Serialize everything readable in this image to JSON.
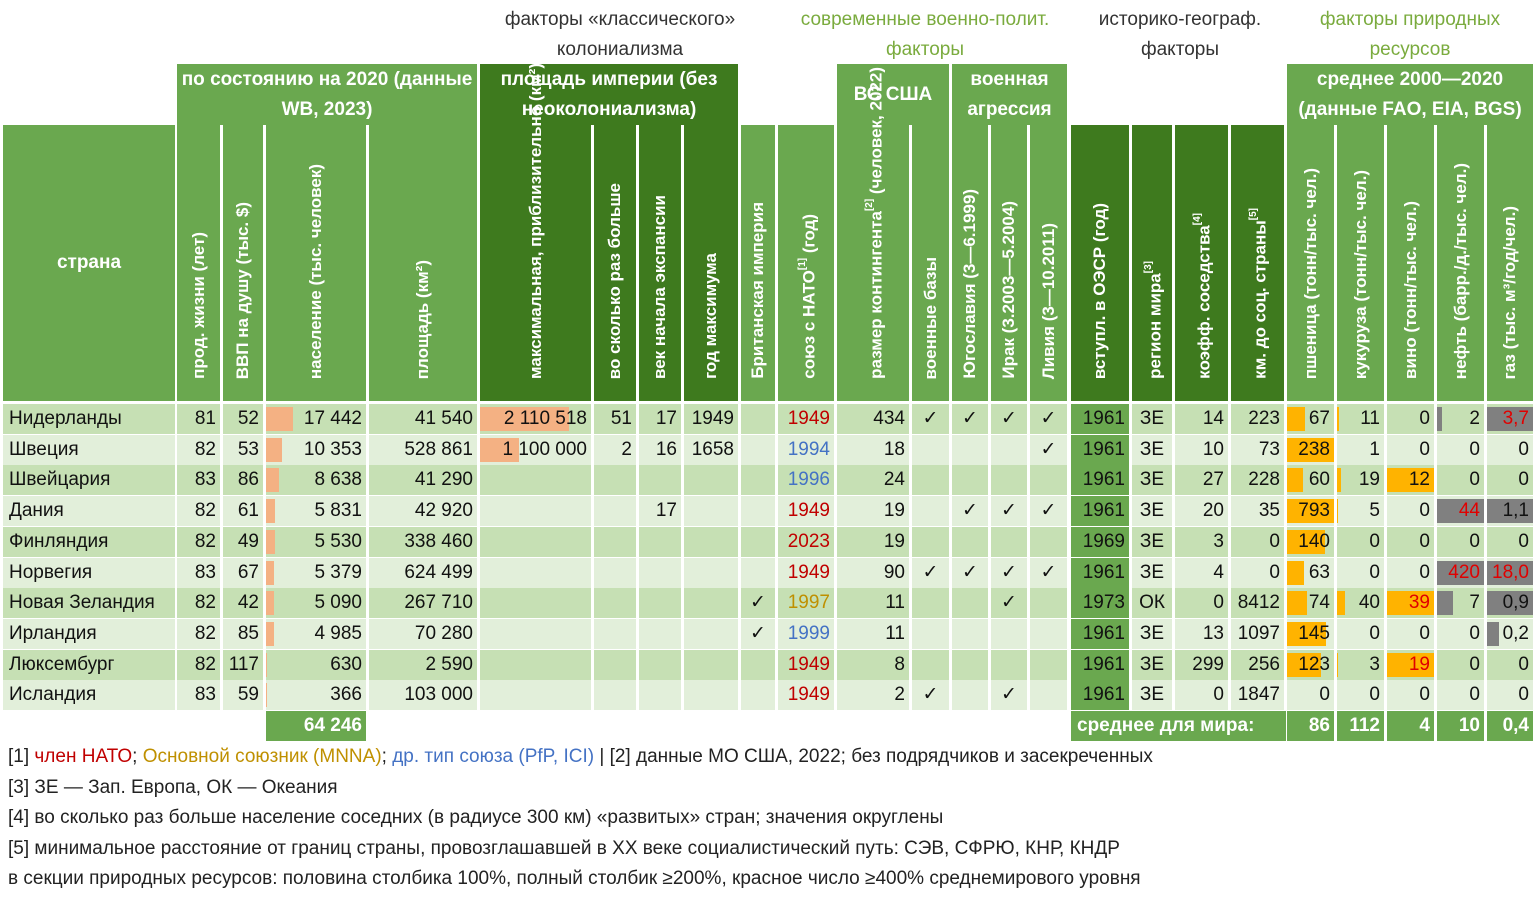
{
  "groups": {
    "classic": "факторы «классического» колониализма",
    "modern": "современные военно-полит. факторы",
    "historic": "историко-географ. факторы",
    "natural": "факторы природных ресурсов"
  },
  "headers": {
    "country": "страна",
    "state2020": "по состоянию на 2020 (данные WB, 2023)",
    "empire": "площадь империи (без неоколониализма)",
    "us_forces": "ВС США",
    "aggression": "военная агрессия",
    "avg2000": "среднее 2000—2020 (данные FAO, EIA, BGS)"
  },
  "columns": {
    "life": "прод. жизни (лет)",
    "gdp": "ВВП на душу (тыс. $)",
    "pop": "население (тыс. человек)",
    "area": "площадь (км²)",
    "maxarea": "максимальная, приблизительно (км²)",
    "times": "во сколько раз больше",
    "century": "век начала экспансии",
    "year": "год максимума",
    "british": "Британская империя",
    "nato": "союз с НАТО",
    "nato_suffix": " (год)",
    "contingent": "размер контингента",
    "contingent_suffix": " (человек, 2022)",
    "bases": "военные базы",
    "yugo": "Югославия (3—6.1999)",
    "iraq": "Ирак (3.2003—5.2004)",
    "libya": "Ливия (3—10.2011)",
    "oecd": "вступл. в ОЭСР (год)",
    "region": "регион мира",
    "neigh": "коэфф. соседства",
    "km": "км. до соц. страны",
    "wheat": "пшеница (тонн/тыс. чел.)",
    "corn": "кукуруза (тонн/тыс. чел.)",
    "wine": "вино (тонн/тыс. чел.)",
    "oil": "нефть (барр./д./тыс. чел.)",
    "gas": "газ (тыс. м³/год/чел.)"
  },
  "refs": {
    "nato": "[1]",
    "contingent": "[2]",
    "region": "[3]",
    "neigh": "[4]",
    "km": "[5]"
  },
  "colors": {
    "light_green": "#6aa84f",
    "dark_green": "#3e7a1e",
    "row_a": "#e2efda",
    "row_b": "#c6e0b4",
    "nato": "#c00000",
    "mnna": "#bf9000",
    "other": "#4472c4",
    "bar_orange": "#ffb300",
    "bar_gray": "#808080"
  },
  "rows": [
    {
      "country": "Нидерланды",
      "life": "81",
      "gdp": "52",
      "pop": "17 442",
      "area": "41 540",
      "maxarea": "2 110 518",
      "times": "51",
      "century": "17",
      "year": "1949",
      "brit": "",
      "nato": "1949",
      "nato_type": "nato",
      "cont": "434",
      "bases": "✓",
      "yugo": "✓",
      "iraq": "✓",
      "libya": "✓",
      "oecd": "1961",
      "region": "ЗЕ",
      "neigh": "14",
      "km": "223",
      "wheat": "67",
      "corn": "11",
      "wine": "0",
      "oil": "2",
      "gas": "3,7"
    },
    {
      "country": "Швеция",
      "life": "82",
      "gdp": "53",
      "pop": "10 353",
      "area": "528 861",
      "maxarea": "1 100 000",
      "times": "2",
      "century": "16",
      "year": "1658",
      "brit": "",
      "nato": "1994",
      "nato_type": "other",
      "cont": "18",
      "bases": "",
      "yugo": "",
      "iraq": "",
      "libya": "✓",
      "oecd": "1961",
      "region": "ЗЕ",
      "neigh": "10",
      "km": "73",
      "wheat": "238",
      "corn": "1",
      "wine": "0",
      "oil": "0",
      "gas": "0"
    },
    {
      "country": "Швейцария",
      "life": "83",
      "gdp": "86",
      "pop": "8 638",
      "area": "41 290",
      "maxarea": "",
      "times": "",
      "century": "",
      "year": "",
      "brit": "",
      "nato": "1996",
      "nato_type": "other",
      "cont": "24",
      "bases": "",
      "yugo": "",
      "iraq": "",
      "libya": "",
      "oecd": "1961",
      "region": "ЗЕ",
      "neigh": "27",
      "km": "228",
      "wheat": "60",
      "corn": "19",
      "wine": "12",
      "oil": "0",
      "gas": "0"
    },
    {
      "country": "Дания",
      "life": "82",
      "gdp": "61",
      "pop": "5 831",
      "area": "42 920",
      "maxarea": "",
      "times": "",
      "century": "17",
      "year": "",
      "brit": "",
      "nato": "1949",
      "nato_type": "nato",
      "cont": "19",
      "bases": "",
      "yugo": "✓",
      "iraq": "✓",
      "libya": "✓",
      "oecd": "1961",
      "region": "ЗЕ",
      "neigh": "20",
      "km": "35",
      "wheat": "793",
      "corn": "5",
      "wine": "0",
      "oil": "44",
      "gas": "1,1"
    },
    {
      "country": "Финляндия",
      "life": "82",
      "gdp": "49",
      "pop": "5 530",
      "area": "338 460",
      "maxarea": "",
      "times": "",
      "century": "",
      "year": "",
      "brit": "",
      "nato": "2023",
      "nato_type": "nato",
      "cont": "19",
      "bases": "",
      "yugo": "",
      "iraq": "",
      "libya": "",
      "oecd": "1969",
      "region": "ЗЕ",
      "neigh": "3",
      "km": "0",
      "wheat": "140",
      "corn": "0",
      "wine": "0",
      "oil": "0",
      "gas": "0"
    },
    {
      "country": "Норвегия",
      "life": "83",
      "gdp": "67",
      "pop": "5 379",
      "area": "624 499",
      "maxarea": "",
      "times": "",
      "century": "",
      "year": "",
      "brit": "",
      "nato": "1949",
      "nato_type": "nato",
      "cont": "90",
      "bases": "✓",
      "yugo": "✓",
      "iraq": "✓",
      "libya": "✓",
      "oecd": "1961",
      "region": "ЗЕ",
      "neigh": "4",
      "km": "0",
      "wheat": "63",
      "corn": "0",
      "wine": "0",
      "oil": "420",
      "gas": "18,0"
    },
    {
      "country": "Новая Зеландия",
      "life": "82",
      "gdp": "42",
      "pop": "5 090",
      "area": "267 710",
      "maxarea": "",
      "times": "",
      "century": "",
      "year": "",
      "brit": "✓",
      "nato": "1997",
      "nato_type": "mnna",
      "cont": "11",
      "bases": "",
      "yugo": "",
      "iraq": "✓",
      "libya": "",
      "oecd": "1973",
      "region": "ОК",
      "neigh": "0",
      "km": "8412",
      "wheat": "74",
      "corn": "40",
      "wine": "39",
      "oil": "7",
      "gas": "0,9"
    },
    {
      "country": "Ирландия",
      "life": "82",
      "gdp": "85",
      "pop": "4 985",
      "area": "70 280",
      "maxarea": "",
      "times": "",
      "century": "",
      "year": "",
      "brit": "✓",
      "nato": "1999",
      "nato_type": "other",
      "cont": "11",
      "bases": "",
      "yugo": "",
      "iraq": "",
      "libya": "",
      "oecd": "1961",
      "region": "ЗЕ",
      "neigh": "13",
      "km": "1097",
      "wheat": "145",
      "corn": "0",
      "wine": "0",
      "oil": "0",
      "gas": "0,2"
    },
    {
      "country": "Люксембург",
      "life": "82",
      "gdp": "117",
      "pop": "630",
      "area": "2 590",
      "maxarea": "",
      "times": "",
      "century": "",
      "year": "",
      "brit": "",
      "nato": "1949",
      "nato_type": "nato",
      "cont": "8",
      "bases": "",
      "yugo": "",
      "iraq": "",
      "libya": "",
      "oecd": "1961",
      "region": "ЗЕ",
      "neigh": "299",
      "km": "256",
      "wheat": "123",
      "corn": "3",
      "wine": "19",
      "oil": "0",
      "gas": "0"
    },
    {
      "country": "Исландия",
      "life": "83",
      "gdp": "59",
      "pop": "366",
      "area": "103 000",
      "maxarea": "",
      "times": "",
      "century": "",
      "year": "",
      "brit": "",
      "nato": "1949",
      "nato_type": "nato",
      "cont": "2",
      "bases": "✓",
      "yugo": "",
      "iraq": "✓",
      "libya": "",
      "oecd": "1961",
      "region": "ЗЕ",
      "neigh": "0",
      "km": "1847",
      "wheat": "0",
      "corn": "0",
      "wine": "0",
      "oil": "0",
      "gas": "0"
    }
  ],
  "bars": {
    "pop": [
      0.27,
      0.16,
      0.13,
      0.09,
      0.09,
      0.08,
      0.08,
      0.08,
      0.01,
      0.01
    ],
    "maxarea": [
      0.8,
      0.35,
      0,
      0,
      0,
      0,
      0,
      0,
      0,
      0
    ],
    "wheat": [
      0.39,
      1,
      0.35,
      1,
      0.81,
      0.37,
      0.43,
      0.84,
      0.72,
      0
    ],
    "corn": [
      0.05,
      0,
      0.08,
      0.02,
      0,
      0,
      0.18,
      0,
      0.01,
      0
    ],
    "wine": [
      0,
      0,
      1,
      0,
      0,
      0,
      1,
      0,
      1,
      0
    ],
    "oil": [
      0.1,
      0,
      0,
      1,
      0,
      1,
      0.35,
      0,
      0,
      0
    ],
    "gas": [
      1,
      0,
      0,
      1,
      0,
      1,
      1,
      0.25,
      0,
      0
    ]
  },
  "red_flags": {
    "oil": [
      false,
      false,
      false,
      true,
      false,
      true,
      false,
      false,
      false,
      false
    ],
    "gas": [
      true,
      false,
      false,
      false,
      false,
      true,
      false,
      false,
      false,
      false
    ],
    "wine": [
      false,
      false,
      false,
      false,
      false,
      false,
      true,
      false,
      true,
      false
    ]
  },
  "totals": {
    "pop": "64 246",
    "world_label": "среднее для мира:",
    "wheat": "86",
    "corn": "112",
    "wine": "4",
    "oil": "10",
    "gas": "0,4"
  },
  "notes": {
    "n1_ref": "[1]",
    "n1_nato": "член НАТО",
    "n1_sep1": ";",
    "n1_mnna": "Основной союзник (MNNA)",
    "n1_sep2": ";",
    "n1_other": "др. тип союза (PfP, ICI)",
    "n1_rest": "| [2] данные МО США, 2022; без подрядчиков и засекреченных",
    "n3": "[3] ЗЕ — Зап. Европа, ОК — Океания",
    "n4": "[4] во сколько раз больше население соседних (в радиусе 300 км) «развитых» стран; значения округлены",
    "n5": "[5] минимальное расстояние от границ страны, провозглашавшей в XX веке социалистический путь: СЭВ, СФРЮ, КНР, КНДР",
    "n6": "в секции природных ресурсов: половина столбика 100%, полный столбик ≥200%, красное число ≥400% среднемирового уровня"
  }
}
